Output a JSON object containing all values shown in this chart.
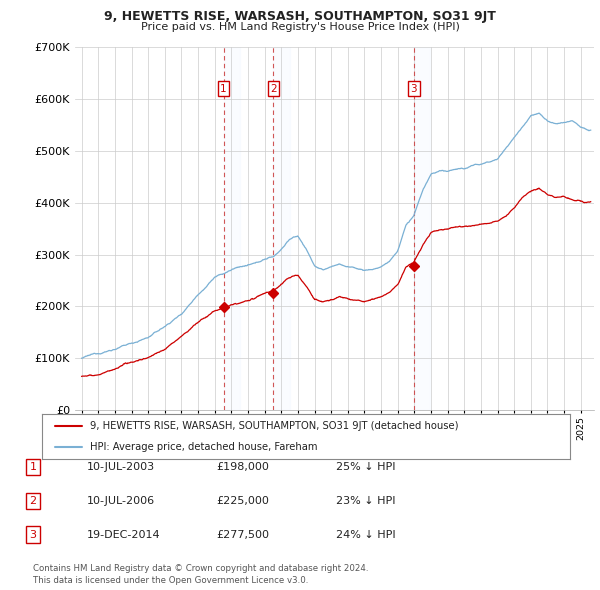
{
  "title": "9, HEWETTS RISE, WARSASH, SOUTHAMPTON, SO31 9JT",
  "subtitle": "Price paid vs. HM Land Registry's House Price Index (HPI)",
  "ylim": [
    0,
    700000
  ],
  "yticks": [
    0,
    100000,
    200000,
    300000,
    400000,
    500000,
    600000,
    700000
  ],
  "ytick_labels": [
    "£0",
    "£100K",
    "£200K",
    "£300K",
    "£400K",
    "£500K",
    "£600K",
    "£700K"
  ],
  "sale_vlines": [
    2003.53,
    2006.53,
    2014.96
  ],
  "legend_entries": [
    {
      "label": "9, HEWETTS RISE, WARSASH, SOUTHAMPTON, SO31 9JT (detached house)",
      "color": "#cc0000"
    },
    {
      "label": "HPI: Average price, detached house, Fareham",
      "color": "#7ab0d4"
    }
  ],
  "table_rows": [
    {
      "num": "1",
      "date": "10-JUL-2003",
      "price": "£198,000",
      "hpi": "25% ↓ HPI"
    },
    {
      "num": "2",
      "date": "10-JUL-2006",
      "price": "£225,000",
      "hpi": "23% ↓ HPI"
    },
    {
      "num": "3",
      "date": "19-DEC-2014",
      "price": "£277,500",
      "hpi": "24% ↓ HPI"
    }
  ],
  "footer": "Contains HM Land Registry data © Crown copyright and database right 2024.\nThis data is licensed under the Open Government Licence v3.0.",
  "hpi_color": "#7ab0d4",
  "sale_color": "#cc0000",
  "vline_color": "#cc4444",
  "grid_color": "#cccccc",
  "background_color": "#ffffff",
  "shade_color": "#ddeeff",
  "xlim_left": 1994.6,
  "xlim_right": 2025.8
}
